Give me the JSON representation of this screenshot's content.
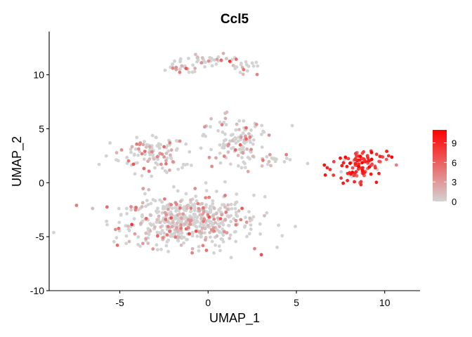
{
  "chart_data": {
    "type": "scatter",
    "title": "Ccl5",
    "xlabel": "UMAP_1",
    "ylabel": "UMAP_2",
    "xlim": [
      -9,
      12
    ],
    "ylim": [
      -10,
      14
    ],
    "x_ticks": [
      -5,
      0,
      5,
      10
    ],
    "y_ticks": [
      -10,
      -5,
      0,
      5,
      10
    ],
    "grid": false,
    "color_scale": {
      "low": "#d3d3d3",
      "high": "#ff0000",
      "min": 0,
      "max": 11,
      "ticks": [
        0,
        3,
        6,
        9
      ],
      "position": "right"
    },
    "clusters": [
      {
        "label": "main lower cluster",
        "center": [
          -1.2,
          -3.6
        ],
        "spread": [
          2.5,
          1.6
        ],
        "n": 520,
        "expression_mean": 1.2,
        "expression_fraction": 0.28
      },
      {
        "label": "left middle region",
        "center": [
          -3.2,
          2.5
        ],
        "spread": [
          1.4,
          1.3
        ],
        "n": 110,
        "expression_mean": 1.5,
        "expression_fraction": 0.3
      },
      {
        "label": "center middle region",
        "center": [
          1.6,
          3.8
        ],
        "spread": [
          1.2,
          1.6
        ],
        "n": 120,
        "expression_mean": 1.3,
        "expression_fraction": 0.25
      },
      {
        "label": "top arc",
        "center": [
          0.2,
          10.8
        ],
        "spread": [
          2.1,
          1.0
        ],
        "n": 80,
        "expression_mean": 1.6,
        "expression_fraction": 0.3
      },
      {
        "label": "bridge",
        "center": [
          3.6,
          2.0
        ],
        "spread": [
          1.0,
          0.4
        ],
        "n": 20,
        "expression_mean": 1.0,
        "expression_fraction": 0.25
      },
      {
        "label": "right cluster",
        "center": [
          8.6,
          1.6
        ],
        "spread": [
          1.05,
          0.9
        ],
        "n": 110,
        "expression_mean": 7.5,
        "expression_fraction": 0.92
      }
    ]
  }
}
